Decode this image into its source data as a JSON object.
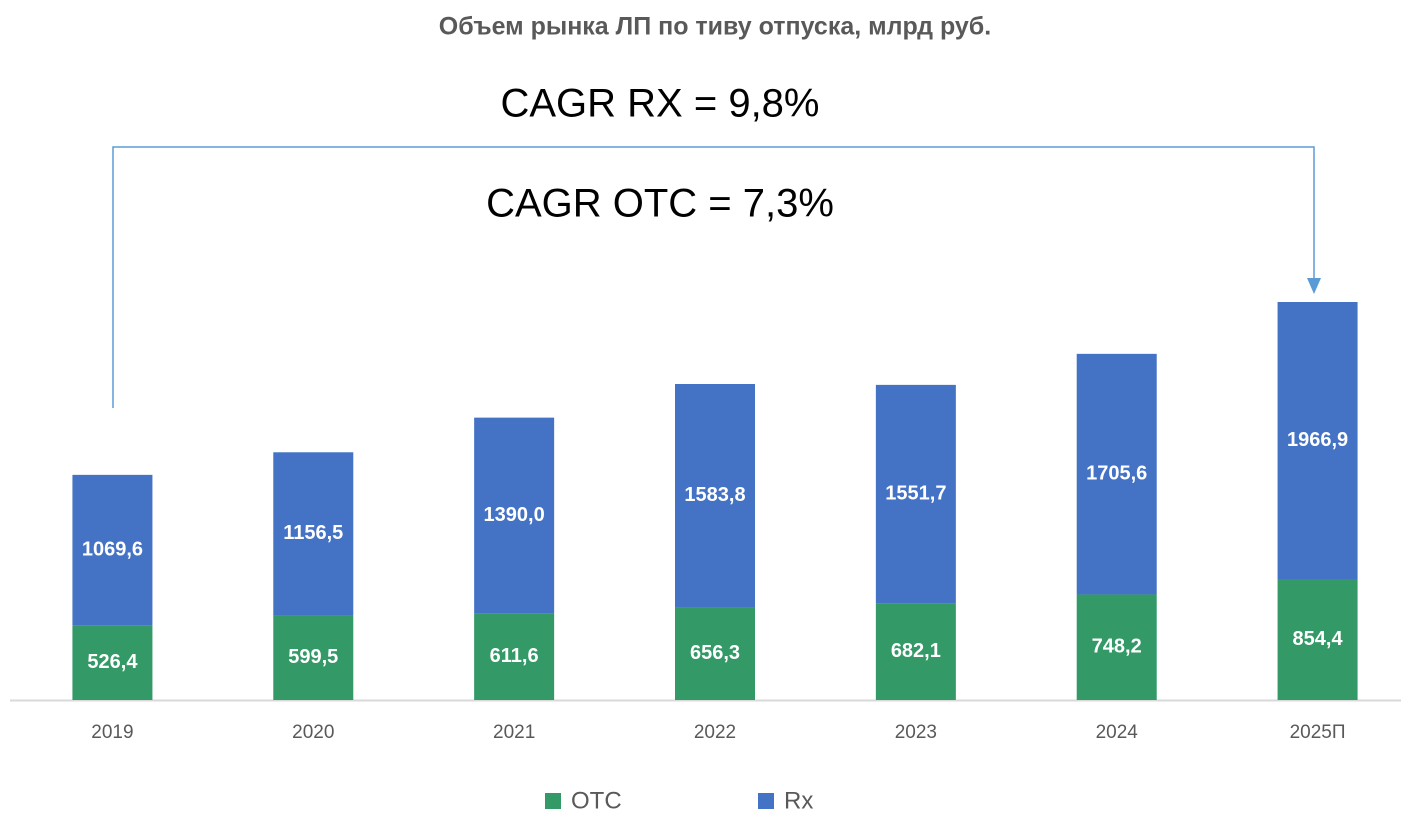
{
  "chart_data": {
    "type": "stacked_bar",
    "title": "Объем рынка ЛП по тиву отпуска, млрд руб.",
    "annotations": [
      "CAGR RX = 9,8%",
      "CAGR OTC = 7,3%"
    ],
    "categories": [
      "2019",
      "2020",
      "2021",
      "2022",
      "2023",
      "2024",
      "2025П"
    ],
    "series": [
      {
        "name": "OTC",
        "color": "#339966",
        "values": [
          526.4,
          599.5,
          611.6,
          656.3,
          682.1,
          748.2,
          854.4
        ],
        "value_labels": [
          "526,4",
          "599,5",
          "611,6",
          "656,3",
          "682,1",
          "748,2",
          "854,4"
        ]
      },
      {
        "name": "Rx",
        "color": "#4472c4",
        "values": [
          1069.6,
          1156.5,
          1390.0,
          1583.8,
          1551.7,
          1705.6,
          1966.9
        ],
        "value_labels": [
          "1069,6",
          "1156,5",
          "1390,0",
          "1583,8",
          "1551,7",
          "1705,6",
          "1966,9"
        ]
      }
    ],
    "legend": "bottom"
  }
}
